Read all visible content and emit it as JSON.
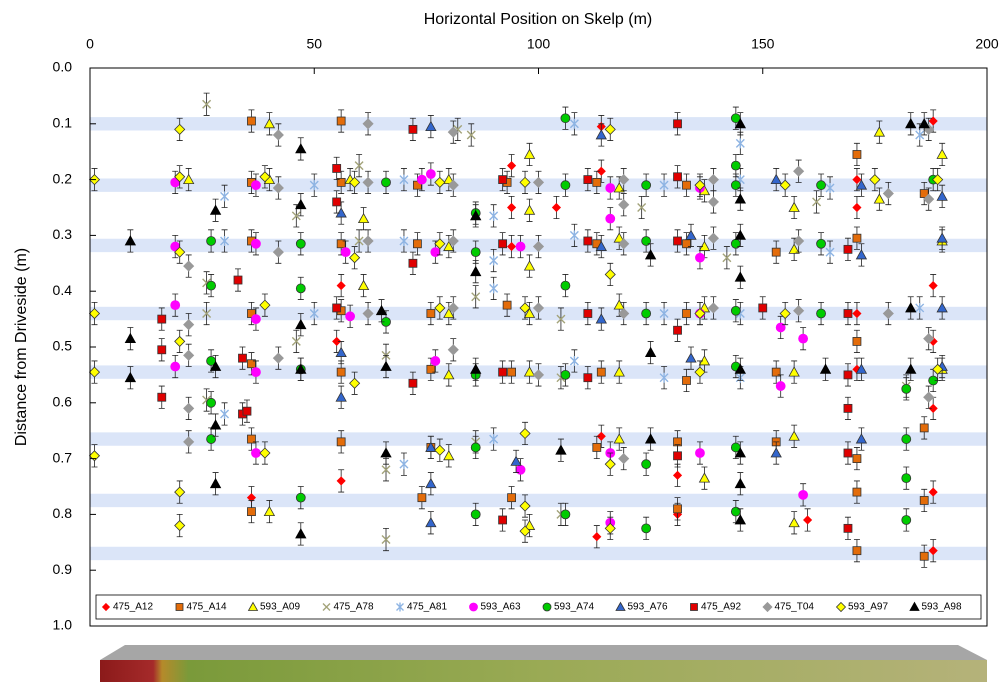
{
  "chart_data": {
    "type": "scatter",
    "x_label": "Horizontal Position on Skelp (m)",
    "y_label": "Distance from Driveside (m)",
    "xlim": [
      0,
      200
    ],
    "xticks": [
      0,
      50,
      100,
      150,
      200
    ],
    "ylim": [
      0,
      1
    ],
    "y_reversed": true,
    "yticks": [
      {
        "value": 0,
        "label": "0.0"
      },
      {
        "value": 0.1,
        "label": "0.1"
      },
      {
        "value": 0.2,
        "label": "0.2"
      },
      {
        "value": 0.3,
        "label": "0.3"
      },
      {
        "value": 0.4,
        "label": "0.4"
      },
      {
        "value": 0.5,
        "label": "0.5"
      },
      {
        "value": 0.6,
        "label": "0.6"
      },
      {
        "value": 0.7,
        "label": "0.7"
      },
      {
        "value": 0.8,
        "label": "0.8"
      },
      {
        "value": 0.9,
        "label": "0.9"
      },
      {
        "value": 1,
        "label": "1.0"
      }
    ],
    "bands": [
      0.1,
      0.21,
      0.318,
      0.44,
      0.545,
      0.665,
      0.775,
      0.87
    ],
    "band_width": 0.024,
    "band_color": "#dbe5f8",
    "error_bar": 0.02,
    "legend": "bottom",
    "series": [
      {
        "name": "475_A12",
        "color": "#ff0000",
        "marker": "diamond-small",
        "x": [
          56,
          55,
          56,
          36,
          94,
          94,
          94,
          104,
          114,
          114,
          114,
          113,
          131,
          131,
          160,
          171,
          171,
          171,
          171,
          188,
          188,
          188,
          188,
          188,
          188
        ],
        "values": [
          0.39,
          0.49,
          0.74,
          0.77,
          0.175,
          0.25,
          0.32,
          0.25,
          0.105,
          0.185,
          0.66,
          0.84,
          0.73,
          0.8,
          0.81,
          0.2,
          0.25,
          0.44,
          0.54,
          0.095,
          0.39,
          0.49,
          0.61,
          0.76,
          0.865
        ]
      },
      {
        "name": "475_A14",
        "color": "#e36c0a",
        "marker": "square",
        "x": [
          36,
          56,
          36,
          36,
          36,
          36,
          36,
          36,
          56,
          56,
          56,
          56,
          56,
          73,
          73,
          76,
          76,
          76,
          74,
          93,
          93,
          94,
          94,
          113,
          113,
          114,
          113,
          133,
          133,
          133,
          133,
          131,
          131,
          153,
          153,
          153,
          171,
          171,
          171,
          171,
          171,
          171,
          186,
          186,
          186,
          186
        ],
        "values": [
          0.095,
          0.095,
          0.205,
          0.31,
          0.44,
          0.53,
          0.665,
          0.795,
          0.205,
          0.315,
          0.435,
          0.545,
          0.67,
          0.21,
          0.315,
          0.44,
          0.54,
          0.68,
          0.77,
          0.205,
          0.425,
          0.545,
          0.77,
          0.205,
          0.315,
          0.545,
          0.68,
          0.21,
          0.315,
          0.44,
          0.56,
          0.67,
          0.79,
          0.33,
          0.545,
          0.67,
          0.155,
          0.305,
          0.49,
          0.7,
          0.76,
          0.865,
          0.225,
          0.645,
          0.775,
          0.875
        ]
      },
      {
        "name": "593_A09",
        "color": "#ffff00",
        "marker": "triangle",
        "x": [
          40,
          40,
          58,
          61,
          61,
          80,
          80,
          80,
          80,
          80,
          98,
          98,
          98,
          98,
          98,
          98,
          118,
          118,
          118,
          118,
          118,
          137,
          137,
          137,
          137,
          137,
          157,
          157,
          157,
          157,
          157,
          176,
          176,
          190,
          190,
          190,
          40,
          22
        ],
        "values": [
          0.1,
          0.2,
          0.2,
          0.27,
          0.39,
          0.2,
          0.32,
          0.44,
          0.55,
          0.695,
          0.155,
          0.255,
          0.355,
          0.44,
          0.545,
          0.82,
          0.215,
          0.305,
          0.425,
          0.545,
          0.665,
          0.22,
          0.32,
          0.43,
          0.525,
          0.735,
          0.25,
          0.325,
          0.545,
          0.66,
          0.815,
          0.115,
          0.235,
          0.155,
          0.31,
          0.54,
          0.795,
          0.2
        ]
      },
      {
        "name": "475_A78",
        "color": "#a3a37a",
        "marker": "x",
        "x": [
          26,
          26,
          26,
          26,
          46,
          46,
          66,
          66,
          66,
          82,
          85,
          86,
          86,
          105,
          105,
          105,
          123,
          142,
          162,
          182,
          60,
          60
        ],
        "values": [
          0.065,
          0.385,
          0.44,
          0.595,
          0.265,
          0.49,
          0.515,
          0.72,
          0.845,
          0.11,
          0.12,
          0.41,
          0.67,
          0.45,
          0.555,
          0.8,
          0.25,
          0.34,
          0.24,
          0.57,
          0.175,
          0.31
        ]
      },
      {
        "name": "475_A81",
        "color": "#8eb4e3",
        "marker": "star",
        "x": [
          30,
          30,
          30,
          50,
          50,
          70,
          70,
          70,
          90,
          90,
          90,
          90,
          108,
          108,
          108,
          128,
          128,
          128,
          145,
          145,
          145,
          145,
          165,
          165,
          185,
          185
        ],
        "values": [
          0.23,
          0.31,
          0.62,
          0.21,
          0.44,
          0.2,
          0.31,
          0.71,
          0.265,
          0.345,
          0.395,
          0.665,
          0.1,
          0.3,
          0.525,
          0.21,
          0.44,
          0.555,
          0.135,
          0.2,
          0.44,
          0.555,
          0.215,
          0.33,
          0.12,
          0.43
        ]
      },
      {
        "name": "593_A63",
        "color": "#ff00ff",
        "marker": "circle-plain",
        "x": [
          19,
          19,
          19,
          19,
          37,
          37,
          37,
          37,
          37,
          57,
          58,
          76,
          77,
          77,
          96,
          96,
          116,
          116,
          116,
          116,
          136,
          136,
          136,
          136,
          154,
          154,
          159,
          159,
          74
        ],
        "values": [
          0.205,
          0.32,
          0.425,
          0.535,
          0.21,
          0.315,
          0.45,
          0.545,
          0.69,
          0.33,
          0.445,
          0.19,
          0.33,
          0.525,
          0.32,
          0.72,
          0.215,
          0.27,
          0.69,
          0.815,
          0.215,
          0.34,
          0.44,
          0.69,
          0.465,
          0.57,
          0.485,
          0.765,
          0.2
        ]
      },
      {
        "name": "593_A74",
        "color": "#00cc00",
        "marker": "circle",
        "x": [
          27,
          27,
          27,
          27,
          27,
          47,
          47,
          47,
          47,
          66,
          66,
          86,
          86,
          86,
          86,
          86,
          106,
          106,
          106,
          106,
          106,
          124,
          124,
          124,
          124,
          124,
          144,
          144,
          144,
          144,
          144,
          144,
          144,
          144,
          163,
          163,
          163,
          182,
          182,
          182,
          182,
          188,
          188
        ],
        "values": [
          0.31,
          0.39,
          0.525,
          0.6,
          0.665,
          0.315,
          0.395,
          0.54,
          0.77,
          0.205,
          0.455,
          0.26,
          0.33,
          0.55,
          0.68,
          0.8,
          0.09,
          0.21,
          0.39,
          0.55,
          0.8,
          0.21,
          0.31,
          0.44,
          0.71,
          0.825,
          0.09,
          0.175,
          0.21,
          0.315,
          0.435,
          0.535,
          0.68,
          0.795,
          0.21,
          0.315,
          0.44,
          0.575,
          0.665,
          0.735,
          0.81,
          0.2,
          0.56
        ]
      },
      {
        "name": "593_A76",
        "color": "#3366cc",
        "marker": "triangle",
        "x": [
          56,
          56,
          56,
          76,
          76,
          76,
          76,
          95,
          114,
          114,
          114,
          134,
          134,
          153,
          153,
          172,
          172,
          172,
          172,
          190,
          190,
          190,
          190
        ],
        "values": [
          0.26,
          0.51,
          0.59,
          0.105,
          0.68,
          0.745,
          0.815,
          0.705,
          0.12,
          0.32,
          0.45,
          0.3,
          0.52,
          0.2,
          0.69,
          0.21,
          0.335,
          0.54,
          0.665,
          0.23,
          0.305,
          0.43,
          0.535
        ]
      },
      {
        "name": "475_A92",
        "color": "#e00000",
        "marker": "square",
        "x": [
          16,
          16,
          16,
          33,
          34,
          34,
          35,
          55,
          55,
          55,
          72,
          72,
          72,
          92,
          92,
          92,
          92,
          111,
          111,
          111,
          111,
          131,
          131,
          131,
          131,
          131,
          150,
          169,
          169,
          169,
          169,
          169,
          169
        ],
        "values": [
          0.45,
          0.505,
          0.59,
          0.38,
          0.52,
          0.62,
          0.615,
          0.18,
          0.24,
          0.43,
          0.11,
          0.35,
          0.565,
          0.2,
          0.315,
          0.545,
          0.81,
          0.2,
          0.31,
          0.44,
          0.555,
          0.1,
          0.195,
          0.31,
          0.47,
          0.695,
          0.43,
          0.325,
          0.44,
          0.55,
          0.61,
          0.69,
          0.825
        ]
      },
      {
        "name": "475_T04",
        "color": "#999999",
        "marker": "diamond-plain",
        "x": [
          22,
          22,
          22,
          22,
          22,
          42,
          42,
          42,
          42,
          62,
          62,
          62,
          62,
          81,
          81,
          81,
          81,
          81,
          100,
          100,
          100,
          100,
          119,
          119,
          119,
          119,
          119,
          139,
          139,
          139,
          139,
          158,
          158,
          158,
          178,
          178,
          187,
          187,
          187,
          187
        ],
        "values": [
          0.355,
          0.46,
          0.515,
          0.61,
          0.67,
          0.12,
          0.215,
          0.33,
          0.52,
          0.1,
          0.205,
          0.31,
          0.44,
          0.115,
          0.21,
          0.31,
          0.43,
          0.505,
          0.205,
          0.32,
          0.43,
          0.55,
          0.2,
          0.245,
          0.315,
          0.44,
          0.7,
          0.2,
          0.24,
          0.305,
          0.43,
          0.185,
          0.31,
          0.435,
          0.225,
          0.44,
          0.235,
          0.485,
          0.59,
          0.11
        ]
      },
      {
        "name": "593_A97",
        "color": "#ffff00",
        "marker": "diamond",
        "x": [
          1,
          1,
          1,
          1,
          20,
          20,
          20,
          20,
          20,
          20,
          39,
          39,
          39,
          59,
          59,
          59,
          78,
          78,
          78,
          78,
          97,
          97,
          97,
          97,
          97,
          116,
          116,
          116,
          116,
          136,
          136,
          136,
          155,
          155,
          175,
          189,
          189
        ],
        "values": [
          0.2,
          0.44,
          0.545,
          0.695,
          0.11,
          0.195,
          0.33,
          0.49,
          0.76,
          0.82,
          0.195,
          0.425,
          0.69,
          0.205,
          0.34,
          0.565,
          0.205,
          0.315,
          0.43,
          0.685,
          0.205,
          0.43,
          0.655,
          0.785,
          0.83,
          0.11,
          0.37,
          0.71,
          0.825,
          0.21,
          0.44,
          0.545,
          0.21,
          0.44,
          0.2,
          0.2,
          0.54
        ]
      },
      {
        "name": "593_A98",
        "color": "#000000",
        "marker": "triangle",
        "x": [
          9,
          9,
          9,
          28,
          28,
          28,
          28,
          47,
          47,
          47,
          47,
          47,
          65,
          66,
          66,
          86,
          86,
          86,
          105,
          125,
          125,
          125,
          145,
          145,
          145,
          145,
          145,
          145,
          145,
          145,
          164,
          183,
          183,
          183,
          186
        ],
        "values": [
          0.31,
          0.485,
          0.555,
          0.255,
          0.535,
          0.64,
          0.745,
          0.145,
          0.245,
          0.46,
          0.54,
          0.835,
          0.435,
          0.535,
          0.69,
          0.265,
          0.365,
          0.54,
          0.685,
          0.335,
          0.51,
          0.665,
          0.1,
          0.235,
          0.3,
          0.375,
          0.54,
          0.69,
          0.745,
          0.81,
          0.54,
          0.1,
          0.43,
          0.54,
          0.1
        ]
      }
    ]
  }
}
